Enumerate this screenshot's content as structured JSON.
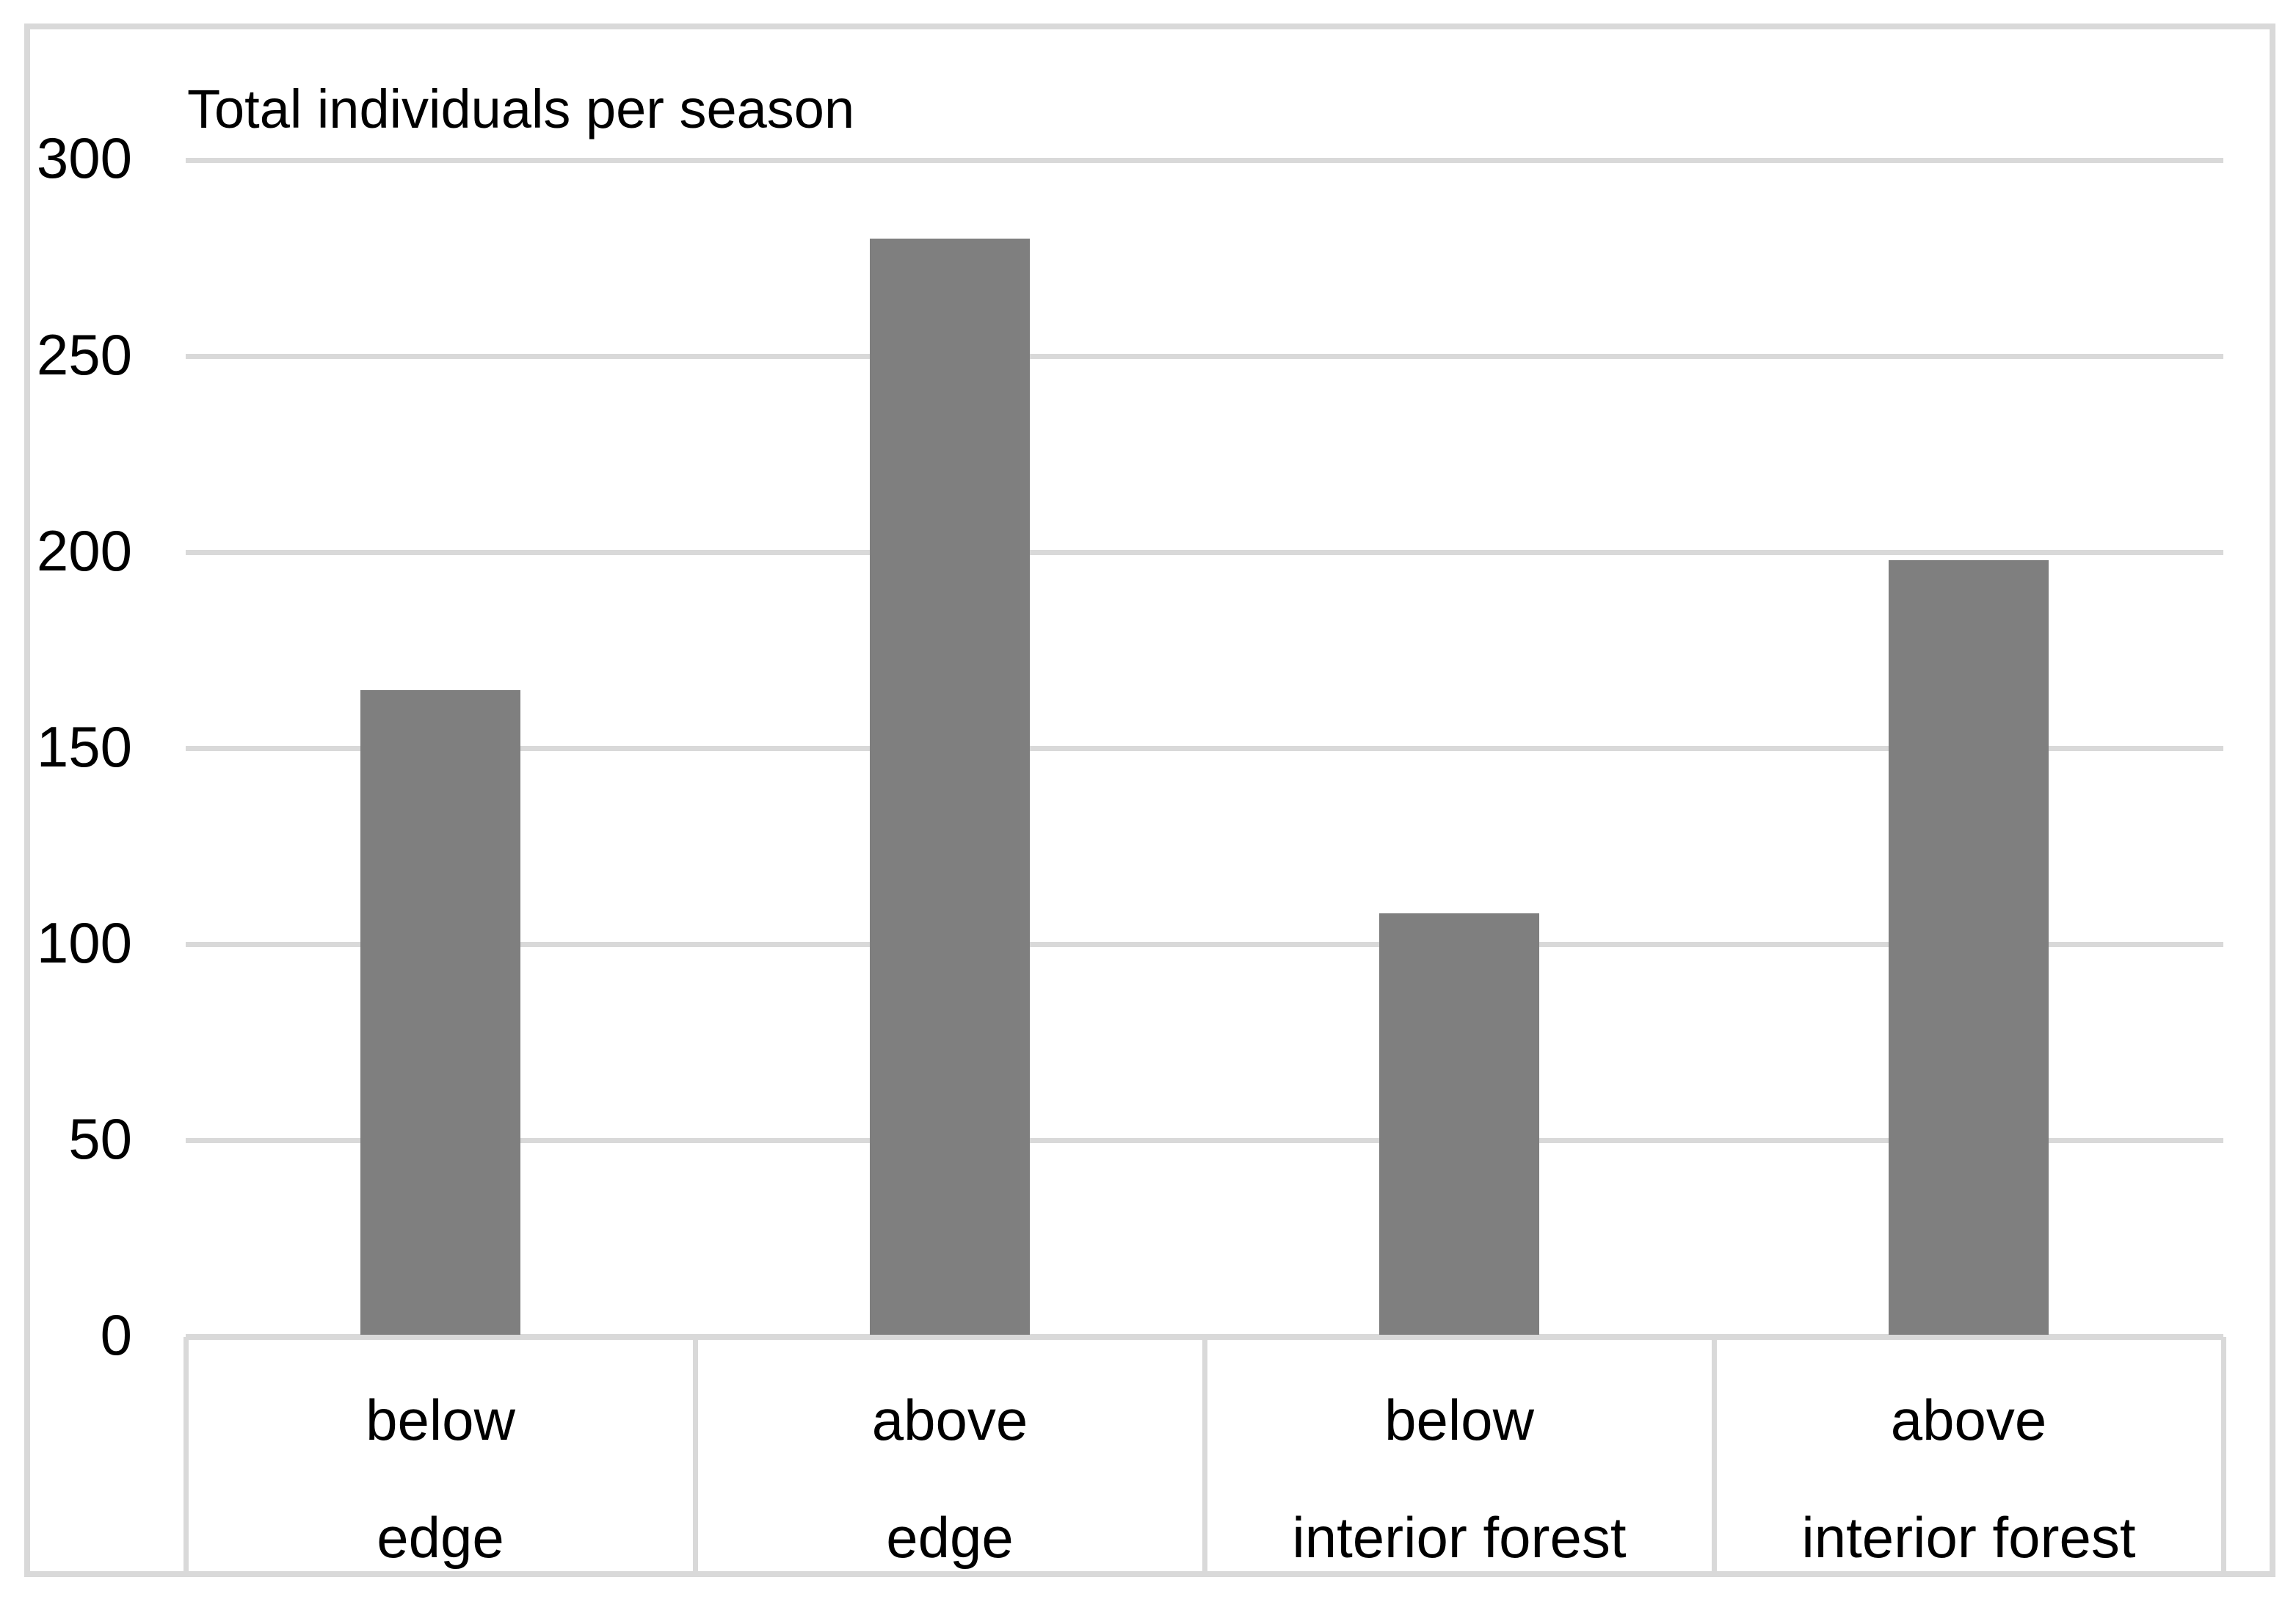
{
  "chart_data": {
    "type": "bar",
    "title": "Total individuals per season",
    "categories": [
      {
        "line1": "below",
        "line2": "edge"
      },
      {
        "line1": "above",
        "line2": "edge"
      },
      {
        "line1": "below",
        "line2": "interior forest"
      },
      {
        "line1": "above",
        "line2": "interior forest"
      }
    ],
    "values": [
      165,
      280,
      108,
      198
    ],
    "y_ticks": [
      0,
      50,
      100,
      150,
      200,
      250,
      300
    ],
    "ylim": [
      0,
      300
    ],
    "xlabel": "",
    "ylabel": "",
    "grid": "horizontal",
    "legend": "none",
    "bar_color": "#7f7f7f",
    "grid_color": "#d9d9d9",
    "frame_color": "#d9d9d9",
    "text_color": "#000000",
    "background_color": "#ffffff"
  }
}
